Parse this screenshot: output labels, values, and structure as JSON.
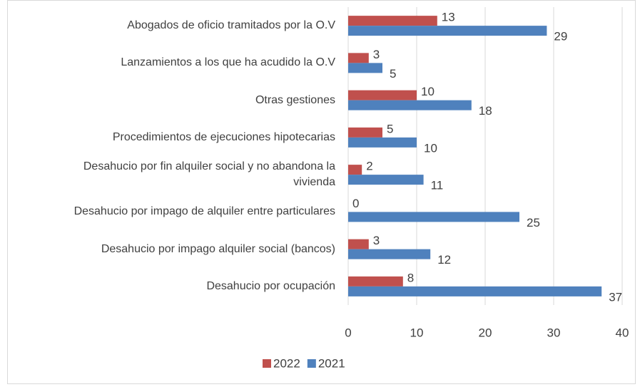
{
  "chart_data": {
    "type": "hbar",
    "categories": [
      "Abogados de oficio tramitados por la O.V",
      "Lanzamientos a los que ha acudido la O.V ",
      "Otras gestiones ",
      "Procedimientos de ejecuciones hipotecarias",
      "Desahucio por fin alquiler social y no abandona la vivienda",
      "Desahucio por impago de alquiler entre particulares",
      "Desahucio por impago alquiler social (bancos)",
      "Desahucio por ocupación"
    ],
    "series": [
      {
        "name": "2022",
        "color": "#c0504d",
        "values": [
          13,
          3,
          10,
          5,
          2,
          0,
          3,
          8
        ]
      },
      {
        "name": "2021",
        "color": "#4f81bd",
        "values": [
          29,
          5,
          18,
          10,
          11,
          25,
          12,
          37
        ]
      }
    ],
    "xlim": [
      0,
      40
    ],
    "xticks": [
      0,
      10,
      20,
      30,
      40
    ],
    "grid": true,
    "legend": "bottom"
  }
}
